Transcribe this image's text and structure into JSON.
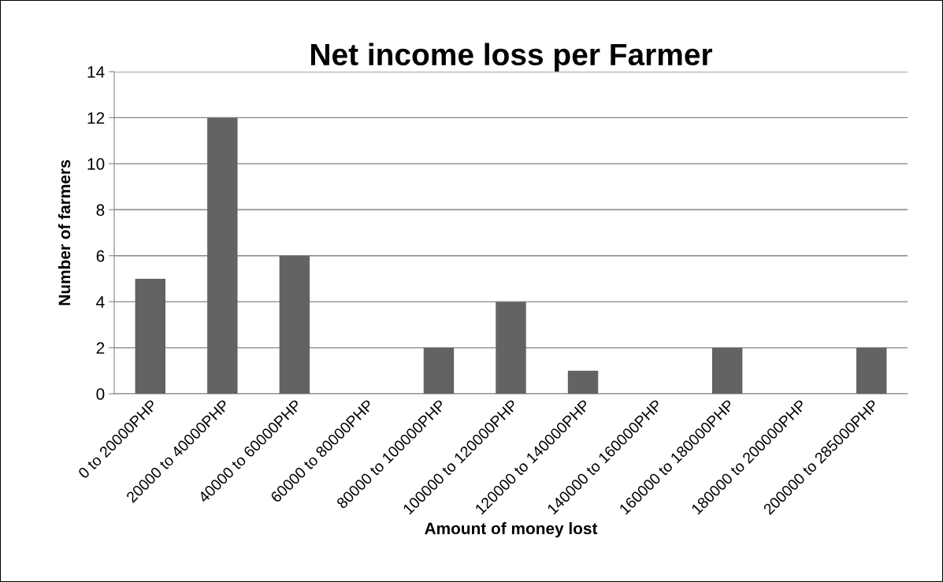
{
  "chart_data": {
    "type": "bar",
    "title": "Net income loss per Farmer",
    "xlabel": "Amount of money lost",
    "ylabel": "Number of farmers",
    "categories": [
      "0 to 20000PHP",
      "20000 to 40000PHP",
      "40000 to 60000PHP",
      "60000 to 80000PHP",
      "80000 to 100000PHP",
      "100000 to 120000PHP",
      "120000 to 140000PHP",
      "140000 to 160000PHP",
      "160000 to 180000PHP",
      "180000 to 200000PHP",
      "200000 to 285000PHP"
    ],
    "values": [
      5,
      12,
      6,
      0,
      2,
      4,
      1,
      0,
      2,
      0,
      2
    ],
    "color": "#636363",
    "ylim": [
      0,
      14
    ],
    "yticks": [
      0,
      2,
      4,
      6,
      8,
      10,
      12,
      14
    ],
    "grid": "y",
    "legend": false
  }
}
